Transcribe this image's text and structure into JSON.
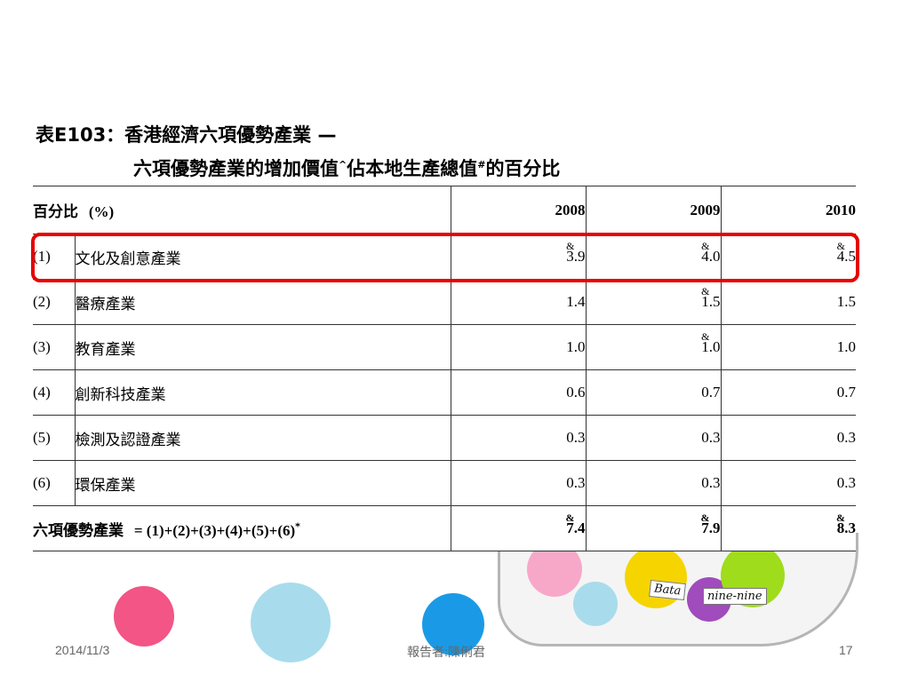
{
  "slide": {
    "title_line1": "表E103：香港經濟六項優勢產業 —",
    "title_line2_a": "六項優勢產業的增加價值",
    "title_line2_b": "佔本地生產總值",
    "title_line2_c": "的百分比",
    "sup_caret": "^",
    "sup_hash": "#"
  },
  "table": {
    "header_label": "百分比",
    "header_unit": "(%)",
    "years": [
      "2008",
      "2009",
      "2010"
    ],
    "rows": [
      {
        "index": "(1)",
        "name": "文化及創意產業",
        "values": [
          "3.9",
          "4.0",
          "4.5"
        ],
        "flags": [
          "&",
          "&",
          "&"
        ]
      },
      {
        "index": "(2)",
        "name": "醫療產業",
        "values": [
          "1.4",
          "1.5",
          "1.5"
        ],
        "flags": [
          "",
          "&",
          ""
        ]
      },
      {
        "index": "(3)",
        "name": "教育產業",
        "values": [
          "1.0",
          "1.0",
          "1.0"
        ],
        "flags": [
          "",
          "&",
          ""
        ]
      },
      {
        "index": "(4)",
        "name": "創新科技產業",
        "values": [
          "0.6",
          "0.7",
          "0.7"
        ],
        "flags": [
          "",
          "",
          ""
        ]
      },
      {
        "index": "(5)",
        "name": "檢測及認證產業",
        "values": [
          "0.3",
          "0.3",
          "0.3"
        ],
        "flags": [
          "",
          "",
          ""
        ]
      },
      {
        "index": "(6)",
        "name": "環保產業",
        "values": [
          "0.3",
          "0.3",
          "0.3"
        ],
        "flags": [
          "",
          "",
          ""
        ]
      }
    ],
    "total": {
      "name": "六項優勢產業",
      "formula": "=  (1)+(2)+(3)+(4)+(5)+(6)",
      "sup": "*",
      "values": [
        "7.4",
        "7.9",
        "8.3"
      ],
      "flags": [
        "&",
        "&",
        "&"
      ]
    }
  },
  "decor": {
    "jar_tag_1": "Bata",
    "jar_tag_2": "nine-nine"
  },
  "footer": {
    "date": "2014/11/3",
    "presenter": "報告者:陳俐君",
    "page": "17"
  },
  "colors": {
    "highlight": "#e60000",
    "pink": "#f25586",
    "light_blue": "#a8dcec",
    "blue": "#1a9ae6"
  }
}
